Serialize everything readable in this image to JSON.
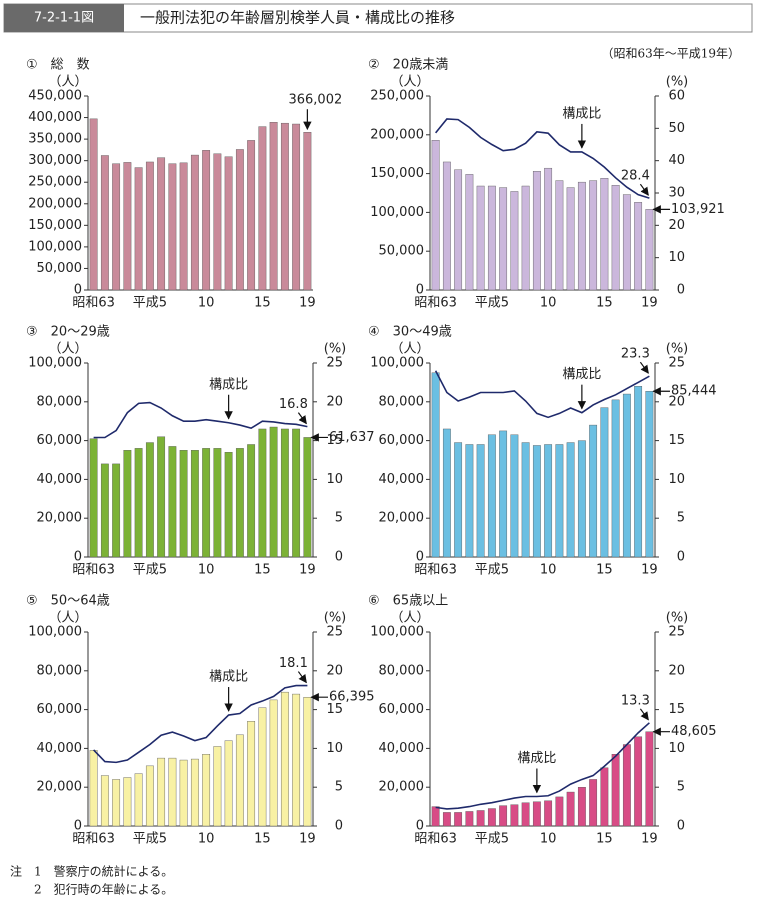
{
  "header": {
    "figure_no": "7-2-1-1図",
    "title": "一般刑法犯の年齢層別検挙人員・構成比の推移",
    "period": "（昭和63年～平成19年）"
  },
  "chart_data": [
    {
      "type": "bar",
      "title": "①　総　数",
      "y_label": "（人）",
      "categories": [
        "昭和63",
        null,
        null,
        null,
        null,
        "平成5",
        null,
        null,
        null,
        null,
        "10",
        null,
        null,
        null,
        null,
        "15",
        null,
        null,
        null,
        "19"
      ],
      "values": [
        397000,
        312000,
        293000,
        296000,
        284000,
        297000,
        307000,
        293000,
        295000,
        313000,
        324000,
        316000,
        309000,
        326000,
        347000,
        379000,
        389000,
        387000,
        385000,
        366002
      ],
      "value_labels": [
        null,
        null,
        null,
        null,
        null,
        null,
        null,
        null,
        null,
        null,
        null,
        null,
        null,
        null,
        null,
        null,
        null,
        null,
        null,
        "366,002"
      ],
      "color": "#c98a9a",
      "ylim": [
        0,
        450000
      ],
      "yticks": [
        0,
        {
          "value": 50000,
          "label": "50,000"
        },
        {
          "value": 100000,
          "label": "100,000"
        },
        {
          "value": 150000,
          "label": "150,000"
        },
        {
          "value": 200000,
          "label": "200,000"
        },
        {
          "value": 250000,
          "label": "250,000"
        },
        {
          "value": 300000,
          "label": "300,000"
        },
        {
          "value": 350000,
          "label": "350,000"
        },
        {
          "value": 400000,
          "label": "400,000"
        },
        {
          "value": 450000,
          "label": "450,000"
        }
      ]
    },
    {
      "type": "combo",
      "title": "②　20歳未満",
      "y_label": "（人）",
      "y2_label": "(%)",
      "annotation": "構成比",
      "categories": [
        "昭和63",
        null,
        null,
        null,
        null,
        "平成5",
        null,
        null,
        null,
        null,
        "10",
        null,
        null,
        null,
        null,
        "15",
        null,
        null,
        null,
        "19"
      ],
      "series": [
        {
          "values": [
            193000,
            165000,
            155000,
            149000,
            134000,
            134000,
            132000,
            127000,
            134000,
            153000,
            157000,
            141000,
            132000,
            139000,
            141000,
            144000,
            135000,
            123000,
            113000,
            103921
          ],
          "value_labels": [
            null,
            null,
            null,
            null,
            null,
            null,
            null,
            null,
            null,
            null,
            null,
            null,
            null,
            null,
            null,
            null,
            null,
            null,
            null,
            "103,921"
          ],
          "color": "#cbb7dc"
        },
        {
          "values": [
            48.6,
            52.9,
            52.7,
            50.3,
            47.2,
            45.0,
            43.1,
            43.5,
            45.4,
            48.9,
            48.5,
            44.9,
            42.7,
            42.7,
            40.7,
            38.0,
            34.7,
            31.8,
            29.5,
            28.4
          ],
          "value_labels": [
            null,
            null,
            null,
            null,
            null,
            null,
            null,
            null,
            null,
            null,
            null,
            null,
            null,
            null,
            null,
            null,
            null,
            null,
            null,
            "28.4"
          ],
          "color": "#1f2a6b",
          "axis": "y2"
        }
      ],
      "ylim": [
        0,
        250000
      ],
      "yticks": [
        0,
        {
          "value": 50000,
          "label": "50,000"
        },
        {
          "value": 100000,
          "label": "100,000"
        },
        {
          "value": 150000,
          "label": "150,000"
        },
        {
          "value": 200000,
          "label": "200,000"
        },
        {
          "value": 250000,
          "label": "250,000"
        }
      ],
      "y2lim": [
        0,
        60
      ],
      "y2ticks": [
        0,
        10,
        20,
        30,
        40,
        50,
        60
      ]
    },
    {
      "type": "combo",
      "title": "③　20～29歳",
      "y_label": "（人）",
      "y2_label": "(%)",
      "annotation": "構成比",
      "categories": [
        "昭和63",
        null,
        null,
        null,
        null,
        "平成5",
        null,
        null,
        null,
        null,
        "10",
        null,
        null,
        null,
        null,
        "15",
        null,
        null,
        null,
        "19"
      ],
      "series": [
        {
          "values": [
            61000,
            48000,
            48000,
            55000,
            56000,
            59000,
            62000,
            57000,
            55000,
            55000,
            56000,
            56000,
            54000,
            56000,
            58000,
            66000,
            67000,
            66000,
            66000,
            61637
          ],
          "value_labels": [
            null,
            null,
            null,
            null,
            null,
            null,
            null,
            null,
            null,
            null,
            null,
            null,
            null,
            null,
            null,
            null,
            null,
            null,
            null,
            "61,637"
          ],
          "color": "#7cb236"
        },
        {
          "values": [
            15.4,
            15.4,
            16.3,
            18.6,
            19.8,
            19.9,
            19.2,
            18.2,
            17.5,
            17.5,
            17.7,
            17.5,
            17.3,
            17.0,
            16.6,
            17.5,
            17.4,
            17.2,
            17.1,
            16.8
          ],
          "value_labels": [
            null,
            null,
            null,
            null,
            null,
            null,
            null,
            null,
            null,
            null,
            null,
            null,
            null,
            null,
            null,
            null,
            null,
            null,
            null,
            "16.8"
          ],
          "color": "#1f2a6b",
          "axis": "y2"
        }
      ],
      "ylim": [
        0,
        100000
      ],
      "yticks": [
        0,
        {
          "value": 20000,
          "label": "20,000"
        },
        {
          "value": 40000,
          "label": "40,000"
        },
        {
          "value": 60000,
          "label": "60,000"
        },
        {
          "value": 80000,
          "label": "80,000"
        },
        {
          "value": 100000,
          "label": "100,000"
        }
      ],
      "y2lim": [
        0,
        25
      ],
      "y2ticks": [
        0,
        5,
        10,
        15,
        20,
        25
      ]
    },
    {
      "type": "combo",
      "title": "④　30～49歳",
      "y_label": "（人）",
      "y2_label": "(%)",
      "annotation": "構成比",
      "categories": [
        "昭和63",
        null,
        null,
        null,
        null,
        "平成5",
        null,
        null,
        null,
        null,
        "10",
        null,
        null,
        null,
        null,
        "15",
        null,
        null,
        null,
        "19"
      ],
      "series": [
        {
          "values": [
            95000,
            66000,
            59000,
            58000,
            58000,
            63000,
            65000,
            63000,
            59000,
            57500,
            58000,
            58000,
            59000,
            60000,
            68000,
            77000,
            81000,
            84000,
            88000,
            85444
          ],
          "value_labels": [
            null,
            null,
            null,
            null,
            null,
            null,
            null,
            null,
            null,
            null,
            null,
            null,
            null,
            null,
            null,
            null,
            null,
            null,
            null,
            "85,444"
          ],
          "color": "#6bbfe2"
        },
        {
          "values": [
            24.0,
            21.2,
            20.1,
            20.6,
            21.2,
            21.2,
            21.2,
            21.4,
            20.1,
            18.5,
            18.0,
            18.5,
            19.2,
            18.6,
            19.6,
            20.3,
            20.9,
            21.7,
            22.5,
            23.3
          ],
          "value_labels": [
            null,
            null,
            null,
            null,
            null,
            null,
            null,
            null,
            null,
            null,
            null,
            null,
            null,
            null,
            null,
            null,
            null,
            null,
            null,
            "23.3"
          ],
          "color": "#1f2a6b",
          "axis": "y2"
        }
      ],
      "ylim": [
        0,
        100000
      ],
      "yticks": [
        0,
        {
          "value": 20000,
          "label": "20,000"
        },
        {
          "value": 40000,
          "label": "40,000"
        },
        {
          "value": 60000,
          "label": "60,000"
        },
        {
          "value": 80000,
          "label": "80,000"
        },
        {
          "value": 100000,
          "label": "100,000"
        }
      ],
      "y2lim": [
        0,
        25
      ],
      "y2ticks": [
        0,
        5,
        10,
        15,
        20,
        25
      ]
    },
    {
      "type": "combo",
      "title": "⑤　50～64歳",
      "y_label": "（人）",
      "y2_label": "(%)",
      "annotation": "構成比",
      "categories": [
        "昭和63",
        null,
        null,
        null,
        null,
        "平成5",
        null,
        null,
        null,
        null,
        "10",
        null,
        null,
        null,
        null,
        "15",
        null,
        null,
        null,
        "19"
      ],
      "series": [
        {
          "values": [
            39000,
            26000,
            24000,
            25000,
            27000,
            31000,
            35000,
            35000,
            34000,
            34500,
            37000,
            41000,
            44000,
            47000,
            54000,
            61000,
            65000,
            69000,
            68000,
            66395
          ],
          "value_labels": [
            null,
            null,
            null,
            null,
            null,
            null,
            null,
            null,
            null,
            null,
            null,
            null,
            null,
            null,
            null,
            null,
            null,
            null,
            null,
            "66,395"
          ],
          "color": "#f8f1a4"
        },
        {
          "values": [
            9.8,
            8.3,
            8.2,
            8.5,
            9.5,
            10.5,
            11.7,
            12.1,
            11.6,
            11.0,
            11.4,
            12.9,
            14.3,
            14.5,
            15.6,
            16.1,
            16.7,
            17.8,
            18.1,
            18.1
          ],
          "value_labels": [
            null,
            null,
            null,
            null,
            null,
            null,
            null,
            null,
            null,
            null,
            null,
            null,
            null,
            null,
            null,
            null,
            null,
            null,
            null,
            "18.1"
          ],
          "color": "#1f2a6b",
          "axis": "y2"
        }
      ],
      "ylim": [
        0,
        100000
      ],
      "yticks": [
        0,
        {
          "value": 20000,
          "label": "20,000"
        },
        {
          "value": 40000,
          "label": "40,000"
        },
        {
          "value": 60000,
          "label": "60,000"
        },
        {
          "value": 80000,
          "label": "80,000"
        },
        {
          "value": 100000,
          "label": "100,000"
        }
      ],
      "y2lim": [
        0,
        25
      ],
      "y2ticks": [
        0,
        5,
        10,
        15,
        20,
        25
      ]
    },
    {
      "type": "combo",
      "title": "⑥　65歳以上",
      "y_label": "（人）",
      "y2_label": "(%)",
      "annotation": "構成比",
      "categories": [
        "昭和63",
        null,
        null,
        null,
        null,
        "平成5",
        null,
        null,
        null,
        null,
        "10",
        null,
        null,
        null,
        null,
        "15",
        null,
        null,
        null,
        "19"
      ],
      "series": [
        {
          "values": [
            10000,
            7000,
            7000,
            7500,
            8000,
            9000,
            10500,
            11000,
            12000,
            12500,
            13000,
            15000,
            17500,
            20000,
            24000,
            30000,
            37000,
            42000,
            46000,
            48605
          ],
          "value_labels": [
            null,
            null,
            null,
            null,
            null,
            null,
            null,
            null,
            null,
            null,
            null,
            null,
            null,
            null,
            null,
            null,
            null,
            null,
            null,
            "48,605"
          ],
          "color": "#d84c86"
        },
        {
          "values": [
            2.4,
            2.2,
            2.3,
            2.5,
            2.8,
            3.0,
            3.3,
            3.6,
            3.8,
            3.8,
            3.9,
            4.5,
            5.4,
            6.0,
            6.5,
            7.7,
            9.0,
            10.5,
            12.0,
            13.3
          ],
          "value_labels": [
            null,
            null,
            null,
            null,
            null,
            null,
            null,
            null,
            null,
            null,
            null,
            null,
            null,
            null,
            null,
            null,
            null,
            null,
            null,
            "13.3"
          ],
          "color": "#1f2a6b",
          "axis": "y2"
        }
      ],
      "ylim": [
        0,
        100000
      ],
      "yticks": [
        0,
        {
          "value": 20000,
          "label": "20,000"
        },
        {
          "value": 40000,
          "label": "40,000"
        },
        {
          "value": 60000,
          "label": "60,000"
        },
        {
          "value": 80000,
          "label": "80,000"
        },
        {
          "value": 100000,
          "label": "100,000"
        }
      ],
      "y2lim": [
        0,
        25
      ],
      "y2ticks": [
        0,
        5,
        10,
        15,
        20,
        25
      ]
    }
  ],
  "notes": {
    "label": "注",
    "items": [
      "1　警察庁の統計による。",
      "2　犯行時の年齢による。"
    ]
  }
}
